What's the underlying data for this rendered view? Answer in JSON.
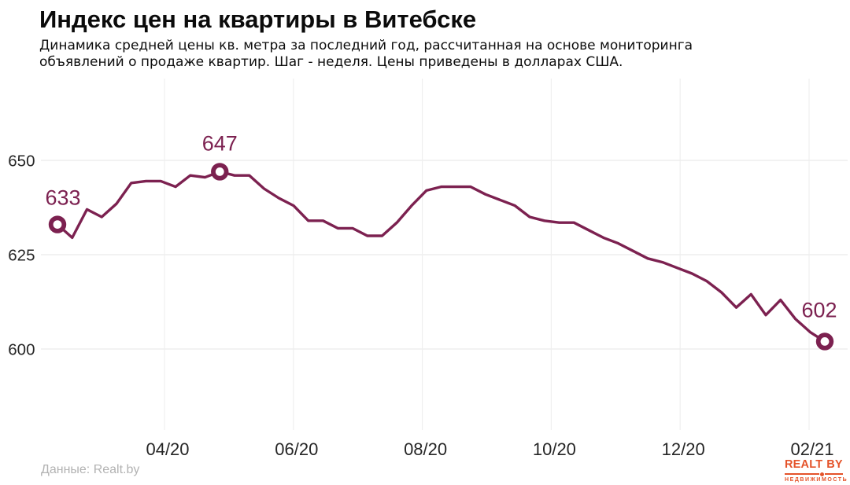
{
  "header": {
    "title": "Индекс цен на квартиры в Витебске",
    "subtitle_lines": [
      "Динамика средней цены кв. метра за последний год, рассчитанная на основе мониторинга",
      "объявлений о продаже квартир. Шаг - неделя. Цены приведены в долларах США."
    ]
  },
  "chart_data": {
    "type": "line",
    "title": "Индекс цен на квартиры в Витебске",
    "xlabel": "",
    "ylabel": "",
    "x_tick_labels": [
      "04/20",
      "06/20",
      "08/20",
      "10/20",
      "12/20",
      "02/21"
    ],
    "y_ticks": [
      650,
      625,
      600
    ],
    "ylim": [
      595,
      655
    ],
    "grid": true,
    "step": "week",
    "values": [
      633,
      629.5,
      637,
      635,
      638.5,
      644,
      644.5,
      644.5,
      643,
      646,
      645.5,
      647,
      646,
      646,
      642.5,
      640,
      638,
      634,
      634,
      632,
      632,
      630,
      630,
      633.5,
      638,
      642,
      643,
      643,
      643,
      641,
      639.5,
      638,
      635,
      634,
      633.5,
      633.5,
      631.5,
      629.5,
      628,
      626,
      624,
      623,
      621.5,
      620,
      618,
      615,
      611,
      614.5,
      609,
      613,
      608,
      604.5,
      602
    ],
    "annotations": [
      {
        "index": 0,
        "text": "633"
      },
      {
        "index": 11,
        "text": "647"
      },
      {
        "index": 52,
        "text": "602"
      }
    ],
    "line_color": "#7c2150",
    "grid_color": "#e9e9e9",
    "tick_color": "#262626"
  },
  "footer": {
    "source": "Данные: Realt.by",
    "logo": {
      "realt": "REALT",
      "by": "BY",
      "subtitle": "НЕДВИЖИМОСТЬ",
      "color": "#e4532a"
    }
  }
}
